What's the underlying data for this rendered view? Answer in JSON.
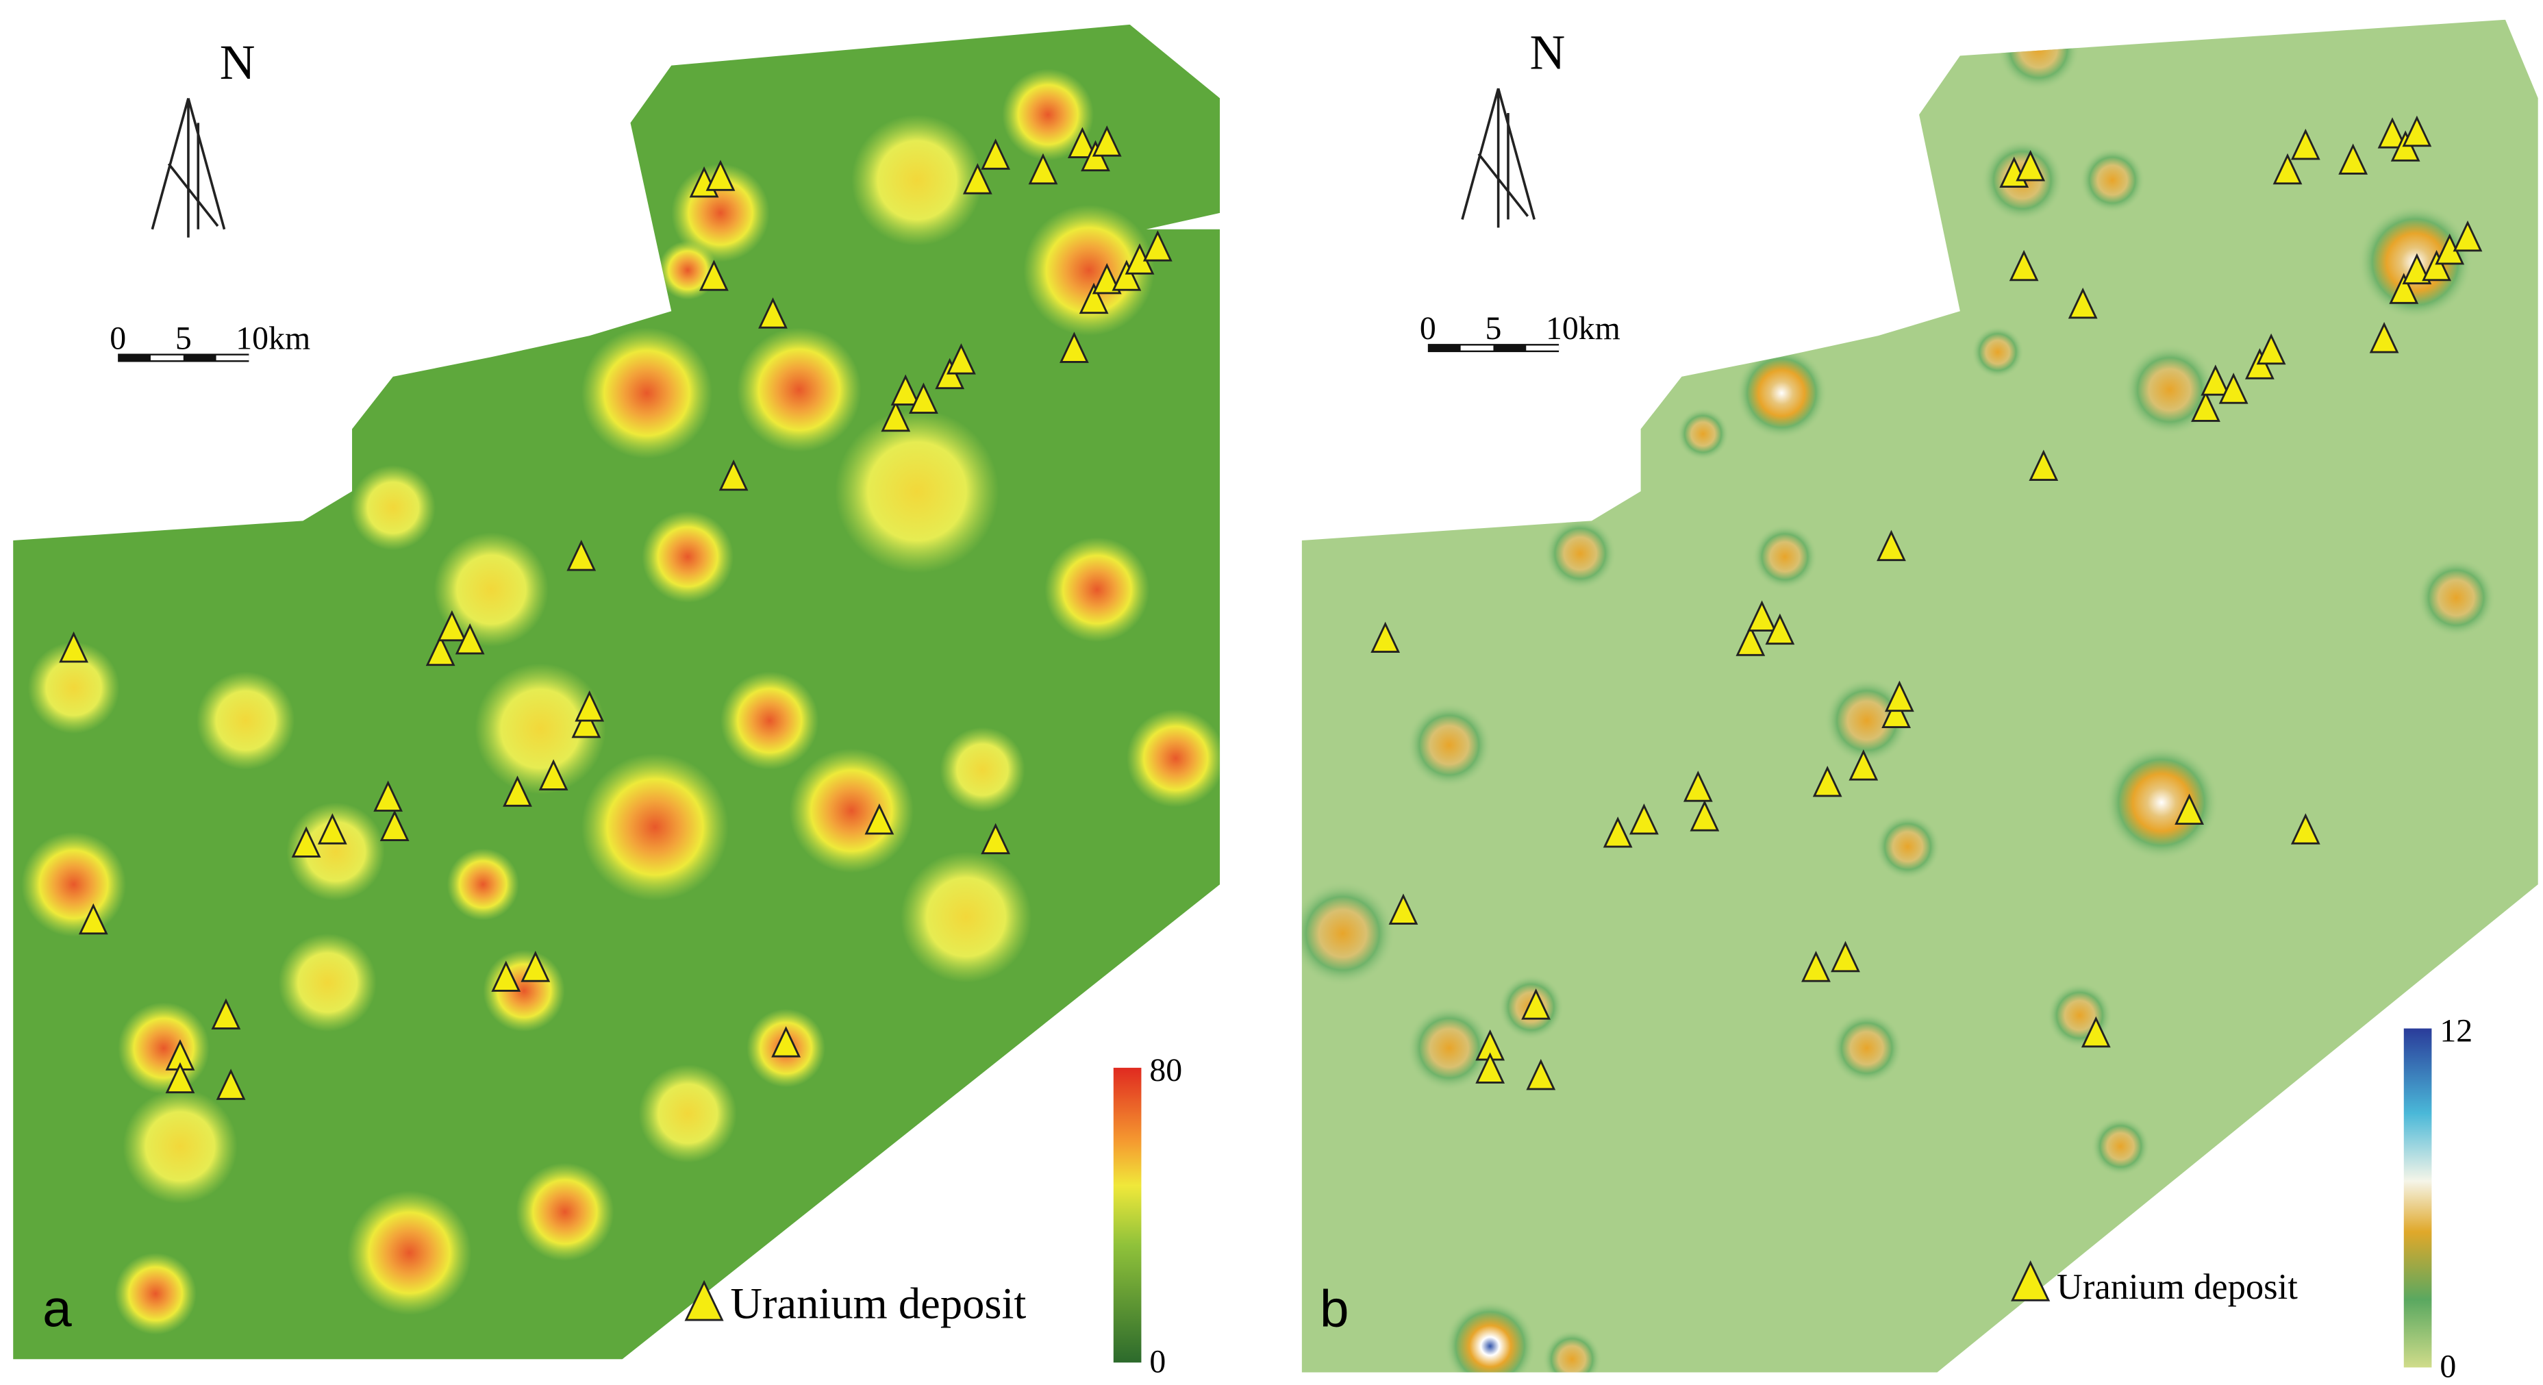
{
  "panels": [
    {
      "label": "a",
      "north": "N",
      "scale_bar": [
        "0",
        "5",
        "10km"
      ],
      "legend": "Uranium deposit",
      "colorbar": {
        "max": 80,
        "min": 0
      }
    },
    {
      "label": "b",
      "north": "N",
      "scale_bar": [
        "0",
        "5",
        "10km"
      ],
      "legend": "Uranium deposit",
      "colorbar": {
        "max": 12,
        "min": 0
      }
    }
  ]
}
